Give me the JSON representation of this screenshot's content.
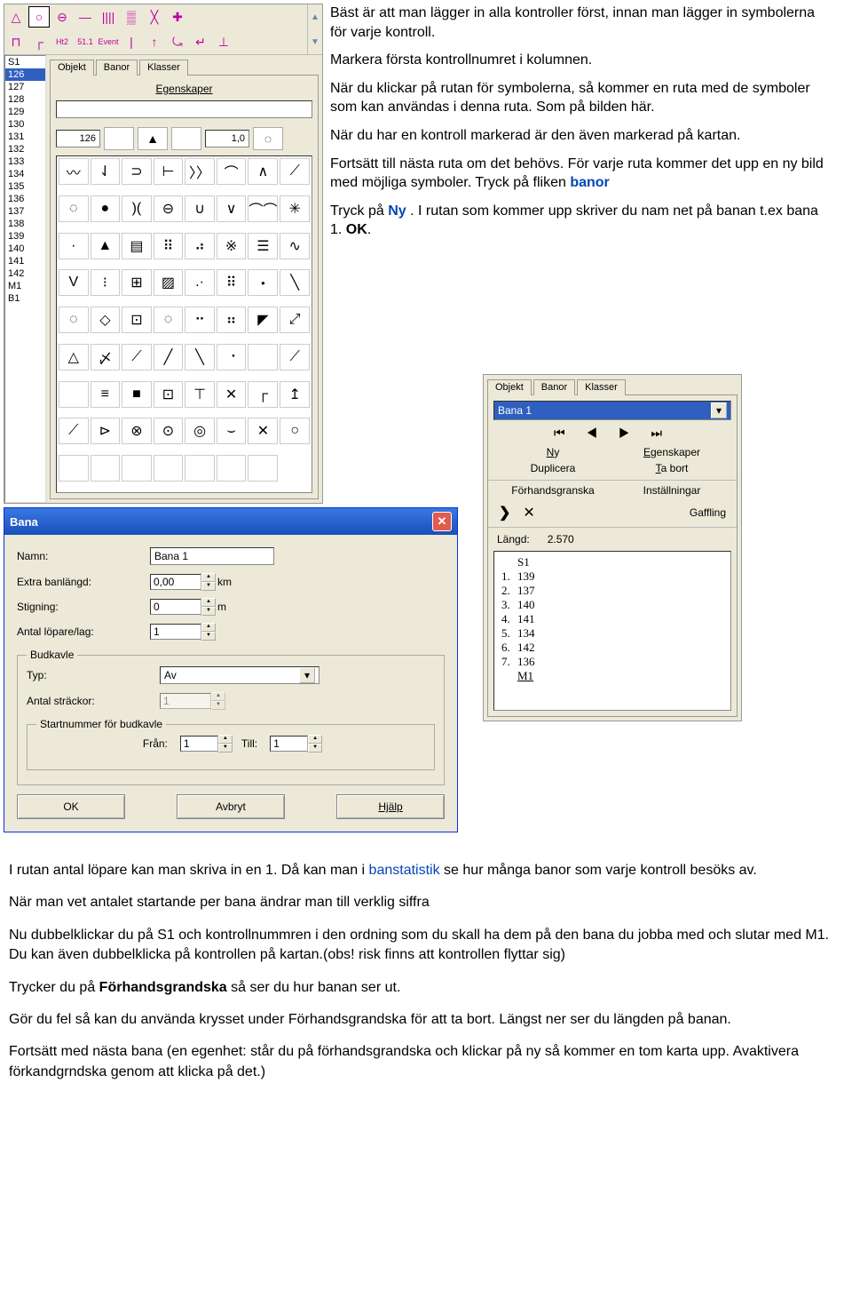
{
  "toolbar": {
    "row1": [
      "△",
      "○",
      "⊖",
      "—",
      "||||",
      "▒",
      "╳",
      "✚"
    ],
    "row2": [
      "⊓",
      "┌",
      "Ht2",
      "51.1",
      "Event",
      "|",
      "↑",
      "⤿",
      "↵",
      "⊥"
    ],
    "row2_active_index": 1
  },
  "numlist": {
    "items": [
      "S1",
      "126",
      "127",
      "128",
      "129",
      "130",
      "131",
      "132",
      "133",
      "134",
      "135",
      "136",
      "137",
      "138",
      "139",
      "140",
      "141",
      "142",
      "M1",
      "B1"
    ],
    "selected_index": 1
  },
  "objekt_panel": {
    "tabs": [
      "Objekt",
      "Banor",
      "Klasser"
    ],
    "active_tab": 0,
    "section_title": "Egenskaper",
    "info_code": "126",
    "info_glyph1": "▲",
    "info_value": "1,0",
    "info_glyph2": "◌"
  },
  "symbols": [
    "〰",
    "⇃",
    "⊃",
    "⊢",
    "〉〉",
    "⌒",
    "∧",
    "⟋",
    "◌",
    "●",
    ")(",
    "⊖",
    "∪",
    "∨",
    "⌒⌒",
    "✳",
    "·",
    "▲",
    "▤",
    "⠿",
    "⠴",
    "※",
    "☰",
    "∿",
    "V",
    "⁝",
    "⊞",
    "▨",
    ".·",
    "⠿",
    "・",
    "╲",
    "◌",
    "◇",
    "⊡",
    "◌",
    "⠒",
    "⠶",
    "◤",
    "⤢",
    "△",
    "〆",
    "⟋",
    "╱",
    "╲",
    "⠐",
    "",
    "⟋",
    " ",
    "≡",
    "■",
    "⊡",
    "⊤",
    "✕",
    "┌",
    "↥",
    "⟋",
    "⊳",
    "⊗",
    "⊙",
    "◎",
    "⌣",
    "✕",
    "○",
    "",
    "",
    "",
    "",
    "",
    "",
    ""
  ],
  "instructions_top": {
    "p1": "Bäst är att man lägger in alla kontroller först, innan man lägger in symbolerna för varje kontroll.",
    "p2": "Markera första kontrollnumret i kolumnen.",
    "p3": "När du klickar på rutan för symbolerna, så kommer en ruta med de symboler som kan användas i denna ruta. Som på bilden här.",
    "p4": "När du har en kontroll markerad är den även markerad på kartan.",
    "p5_a": "Fortsätt till nästa ruta om det behövs. För varje ruta kommer det upp en ny bild med möjliga symboler. Tryck på fliken ",
    "p5_link": "banor",
    "p6_a": "Tryck på ",
    "p6_link": "Ny",
    "p6_b": ". I rutan som kommer upp skriver du nam net på banan t.ex bana 1. ",
    "p6_bold": "OK"
  },
  "banor_panel": {
    "tabs": [
      "Objekt",
      "Banor",
      "Klasser"
    ],
    "active_tab": 1,
    "combo_value": "Bana 1",
    "nav_glyphs": [
      "⏮",
      "◀",
      "▶",
      "⏭"
    ],
    "links": {
      "ny": "Ny",
      "egenskaper": "Egenskaper",
      "duplicera": "Duplicera",
      "tabort": "Ta bort",
      "forhand": "Förhandsgranska",
      "install": "Inställningar",
      "gaffling": "Gaffling"
    },
    "extra_glyphs": [
      "❯",
      "✕"
    ],
    "length_label": "Längd:",
    "length_value": "2.570",
    "course": {
      "head": "S1",
      "rows": [
        {
          "num": "1.",
          "ctrl": "139"
        },
        {
          "num": "2.",
          "ctrl": "137"
        },
        {
          "num": "3.",
          "ctrl": "140"
        },
        {
          "num": "4.",
          "ctrl": "141"
        },
        {
          "num": "5.",
          "ctrl": "134"
        },
        {
          "num": "6.",
          "ctrl": "142"
        },
        {
          "num": "7.",
          "ctrl": "136"
        }
      ],
      "finish": "M1"
    }
  },
  "bana_dialog": {
    "title": "Bana",
    "labels": {
      "namn": "Namn:",
      "extra": "Extra banlängd:",
      "stigning": "Stigning:",
      "antal": "Antal löpare/lag:",
      "budkavle": "Budkavle",
      "typ": "Typ:",
      "strackor": "Antal sträckor:",
      "startnummer": "Startnummer för budkavle",
      "fran": "Från:",
      "till": "Till:"
    },
    "values": {
      "namn": "Bana 1",
      "extra": "0,00",
      "stigning": "0",
      "antal": "1",
      "typ": "Av",
      "strackor": "1",
      "fran": "1",
      "till": "1"
    },
    "units": {
      "km": "km",
      "m": "m"
    },
    "buttons": {
      "ok": "OK",
      "avbryt": "Avbryt",
      "hjalp": "Hjälp"
    }
  },
  "doc_bottom": {
    "p1_a": "I rutan antal löpare kan man skriva in  en 1. Då kan man i ",
    "p1_link": "banstatistik",
    "p1_b": " se hur många banor som varje kontroll besöks av.",
    "p2": "När man vet antalet startande per bana ändrar man till verklig siffra",
    "p3": "Nu dubbelklickar du på S1 och kontrollnummren i den ordning som du skall ha dem på den bana du jobba med och slutar med M1. Du kan även dubbelklicka på kontrollen på kartan.(obs! risk finns att kontrollen flyttar sig)",
    "p4_a": "Trycker du på ",
    "p4_bold": "Förhandsgrandska",
    "p4_b": " så ser du hur banan ser ut.",
    "p5": "Gör du fel så kan du använda krysset under Förhandsgrandska för att ta bort. Längst ner ser du längden på banan.",
    "p6": "Fortsätt med nästa bana (en egenhet: står du på förhandsgrandska och klickar på ny så kommer en tom karta upp. Avaktivera förkandgrndska genom att klicka på det.)"
  }
}
